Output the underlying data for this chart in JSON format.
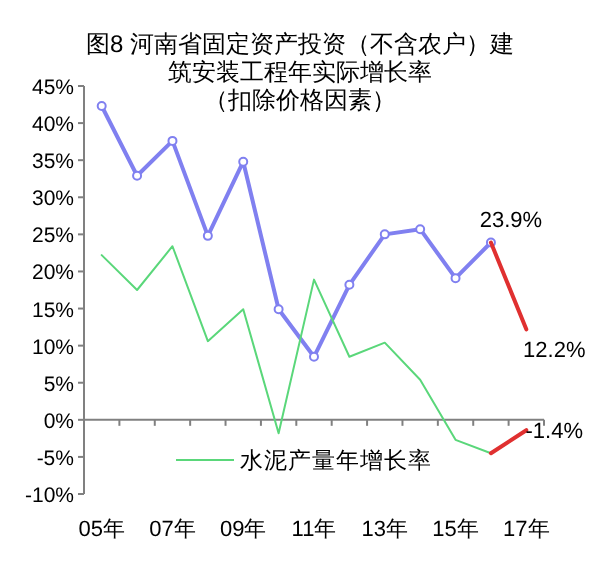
{
  "chart_data": {
    "type": "line",
    "title": "图8  河南省固定资产投资（不含农户）建筑安装工程年实际增长率",
    "subtitle": "（扣除价格因素）",
    "categories": [
      "05年",
      null,
      "07年",
      null,
      "09年",
      null,
      "11年",
      null,
      "13年",
      null,
      "15年",
      null,
      "17年"
    ],
    "series": [
      {
        "color": "#8080f0",
        "marker": "circle",
        "values": [
          42.3,
          32.9,
          37.6,
          24.8,
          34.8,
          14.9,
          8.5,
          18.2,
          25.0,
          25.7,
          19.1,
          23.9,
          null
        ]
      },
      {
        "name": "水泥产量年增长率",
        "color": "#5ad77a",
        "values": [
          22.2,
          17.5,
          23.4,
          10.6,
          14.9,
          -1.8,
          18.9,
          8.5,
          10.4,
          5.4,
          -2.7,
          -4.5,
          null
        ]
      },
      {
        "color": "#e03030",
        "values": [
          null,
          null,
          null,
          null,
          null,
          null,
          null,
          null,
          null,
          null,
          null,
          23.9,
          12.2
        ],
        "value_labels": [
          null,
          null,
          null,
          null,
          null,
          null,
          null,
          null,
          null,
          null,
          null,
          "23.9%",
          "12.2%"
        ]
      },
      {
        "color": "#e03030",
        "values": [
          null,
          null,
          null,
          null,
          null,
          null,
          null,
          null,
          null,
          null,
          null,
          -4.5,
          -1.4
        ],
        "value_labels": [
          null,
          null,
          null,
          null,
          null,
          null,
          null,
          null,
          null,
          null,
          null,
          null,
          "-1.4%"
        ]
      }
    ],
    "ylim": [
      -10,
      45
    ],
    "yticks": [
      {
        "value": 45,
        "label": "45%"
      },
      {
        "value": 40,
        "label": "40%"
      },
      {
        "value": 35,
        "label": "35%"
      },
      {
        "value": 30,
        "label": "30%"
      },
      {
        "value": 25,
        "label": "25%"
      },
      {
        "value": 20,
        "label": "20%"
      },
      {
        "value": 15,
        "label": "15%"
      },
      {
        "value": 10,
        "label": "10%"
      },
      {
        "value": 5,
        "label": "5%"
      },
      {
        "value": 0,
        "label": "0%"
      },
      {
        "value": -5,
        "label": "-5%"
      },
      {
        "value": -10,
        "label": "-10%"
      }
    ],
    "legend": "bottom"
  }
}
